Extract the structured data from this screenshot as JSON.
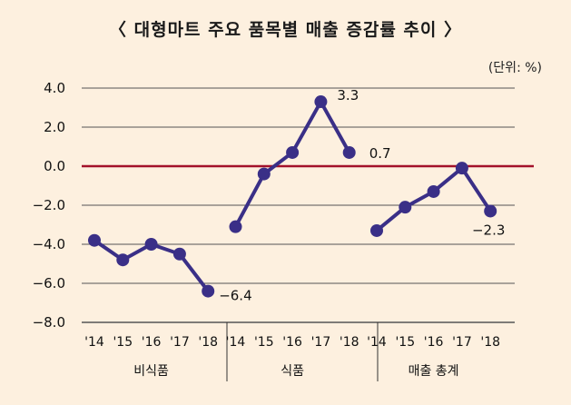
{
  "chart_data": {
    "type": "line",
    "title": "〈 대형마트 주요 품목별 매출 증감률 추이 〉",
    "unit_label": "(단위: %)",
    "ylim": [
      -8.0,
      4.0
    ],
    "yticks": [
      "4.0",
      "2.0",
      "0.0",
      "−2.0",
      "−4.0",
      "−6.0",
      "−8.0"
    ],
    "ytick_values": [
      4,
      2,
      0,
      -2,
      -4,
      -6,
      -8
    ],
    "reference_line": 0,
    "colors": {
      "line": "#3a2f87",
      "zero_line": "#a3112a",
      "grid": "#555555",
      "background": "#fdf0df"
    },
    "groups": [
      {
        "name": "비식품",
        "x": [
          "'14",
          "'15",
          "'16",
          "'17",
          "'18"
        ],
        "values": [
          -3.8,
          -4.8,
          -4.0,
          -4.5,
          -6.4
        ],
        "labels": [
          null,
          null,
          null,
          null,
          "−6.4"
        ]
      },
      {
        "name": "식품",
        "x": [
          "'14",
          "'15",
          "'16",
          "'17",
          "'18"
        ],
        "values": [
          -3.1,
          -0.4,
          0.7,
          3.3,
          0.7
        ],
        "labels": [
          null,
          null,
          null,
          "3.3",
          "0.7"
        ]
      },
      {
        "name": "매출 총계",
        "x": [
          "'14",
          "'15",
          "'16",
          "'17",
          "'18"
        ],
        "values": [
          -3.3,
          -2.1,
          -1.3,
          -0.1,
          -2.3
        ],
        "labels": [
          null,
          null,
          null,
          null,
          "−2.3"
        ]
      }
    ]
  }
}
